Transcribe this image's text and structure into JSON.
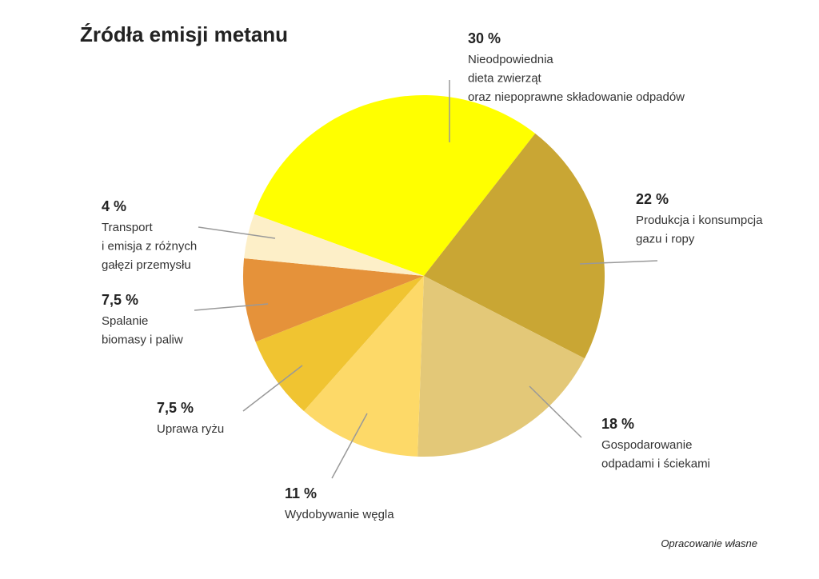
{
  "chart_data": {
    "type": "pie",
    "title": "Źródła emisji metanu",
    "categories": [
      [
        "Nieodpowiednia",
        "dieta zwierząt",
        "oraz niepoprawne składowanie odpadów"
      ],
      [
        "Produkcja i konsumpcja",
        "gazu i ropy"
      ],
      [
        "Gospodarowanie",
        "odpadami i ściekami"
      ],
      [
        "Wydobywanie węgla"
      ],
      [
        "Uprawa ryżu"
      ],
      [
        "Spalanie",
        "biomasy i paliw"
      ],
      [
        "Transport",
        "i emisja z różnych",
        "gałęzi przemysłu"
      ]
    ],
    "values": [
      30,
      22,
      18,
      11,
      7.5,
      7.5,
      4
    ],
    "value_labels": [
      "30 %",
      "22 %",
      "18 %",
      "11 %",
      "7,5 %",
      "7,5 %",
      "4 %"
    ],
    "colors": [
      "#ffff00",
      "#c9a634",
      "#e3c878",
      "#fdd968",
      "#f0c431",
      "#e5923a",
      "#fdefc8"
    ],
    "source": "Opracowanie własne"
  }
}
